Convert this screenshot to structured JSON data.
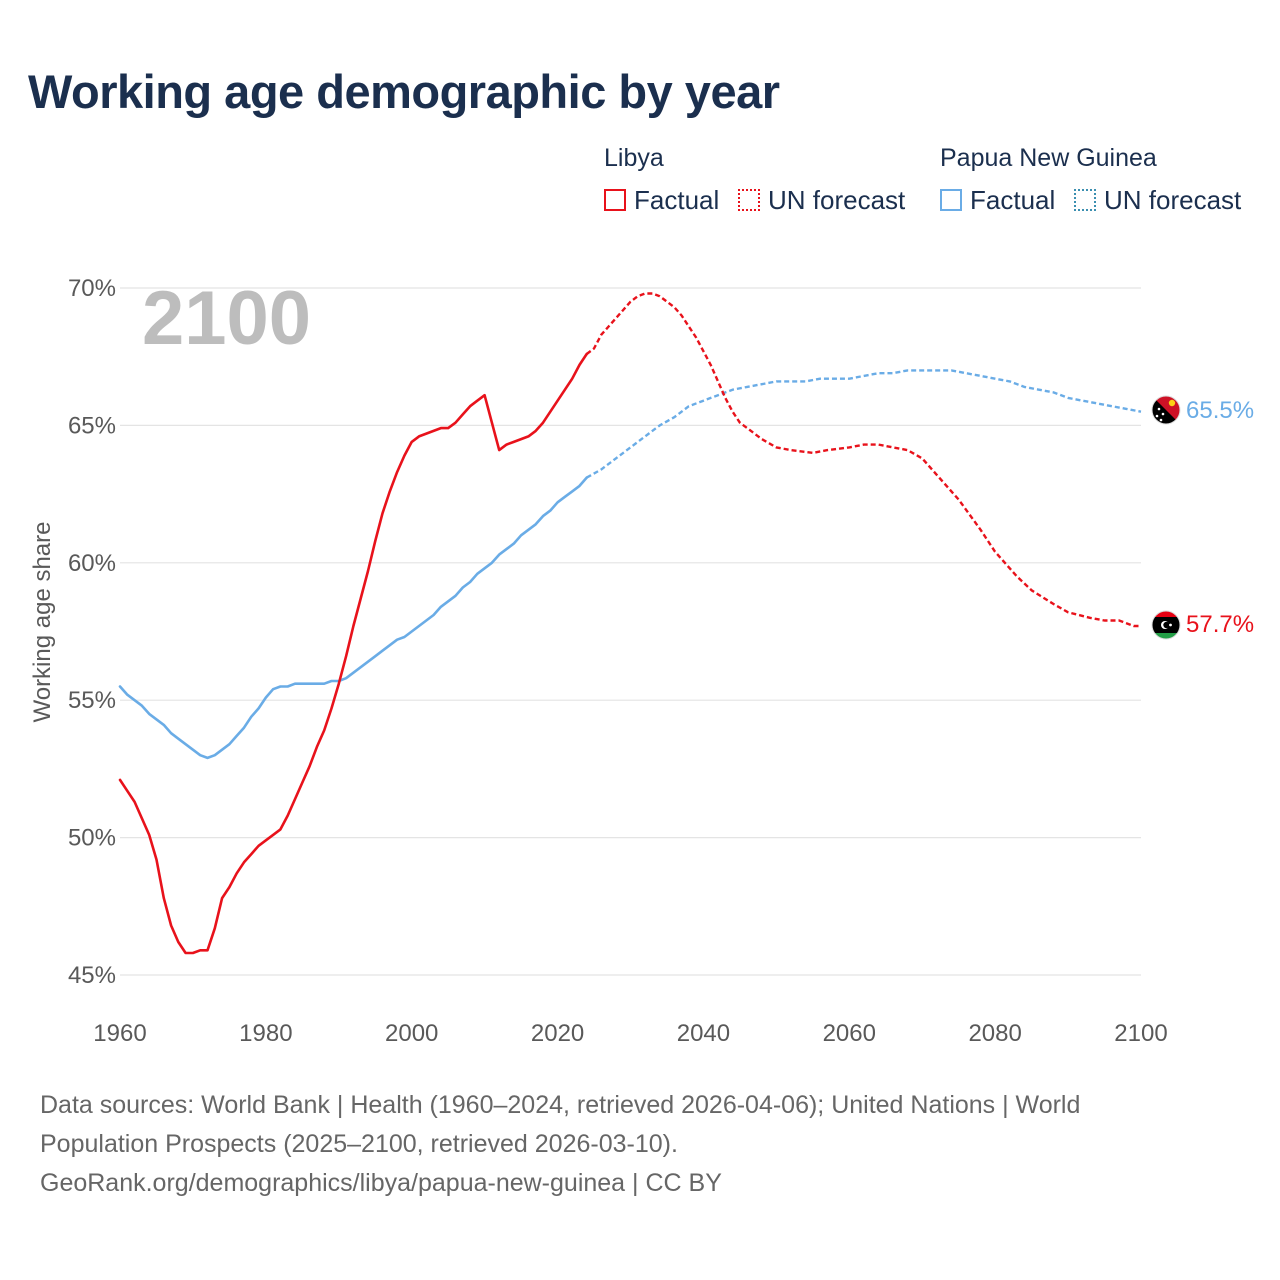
{
  "title": "Working age demographic by year",
  "legend": {
    "groups": [
      {
        "country": "Libya",
        "factual_label": "Factual",
        "forecast_label": "UN forecast",
        "color": "#e8121b"
      },
      {
        "country": "Papua New Guinea",
        "factual_label": "Factual",
        "forecast_label": "UN forecast",
        "color": "#6aace6"
      }
    ]
  },
  "footer": {
    "sources": "Data sources: World Bank | Health (1960–2024, retrieved 2026-04-06); United Nations | World Population Prospects (2025–2100, retrieved 2026-03-10).",
    "credit": "GeoRank.org/demographics/libya/papua-new-guinea | CC BY"
  },
  "chart_data": {
    "type": "line",
    "title": "Working age demographic by year",
    "year_display": "2100",
    "xlabel": "",
    "ylabel": "Working age share",
    "xlim": [
      1960,
      2100
    ],
    "ylim": [
      45,
      70
    ],
    "x_ticks": [
      "1960",
      "1980",
      "2000",
      "2020",
      "2040",
      "2060",
      "2080",
      "2100"
    ],
    "x_tick_values": [
      1960,
      1980,
      2000,
      2020,
      2040,
      2060,
      2080,
      2100
    ],
    "y_ticks": [
      "45%",
      "50%",
      "55%",
      "60%",
      "65%",
      "70%"
    ],
    "y_tick_values": [
      45,
      50,
      55,
      60,
      65,
      70
    ],
    "grid": true,
    "forecast_start_year": 2024,
    "series": [
      {
        "name": "Libya",
        "color": "#e8121b",
        "end_label": "57.7%",
        "flag": "libya-flag",
        "points": [
          [
            1960,
            52.1
          ],
          [
            1962,
            51.3
          ],
          [
            1964,
            50.1
          ],
          [
            1965,
            49.2
          ],
          [
            1966,
            47.8
          ],
          [
            1967,
            46.8
          ],
          [
            1968,
            46.2
          ],
          [
            1969,
            45.8
          ],
          [
            1970,
            45.8
          ],
          [
            1971,
            45.9
          ],
          [
            1972,
            45.9
          ],
          [
            1973,
            46.7
          ],
          [
            1974,
            47.8
          ],
          [
            1975,
            48.2
          ],
          [
            1976,
            48.7
          ],
          [
            1977,
            49.1
          ],
          [
            1978,
            49.4
          ],
          [
            1979,
            49.7
          ],
          [
            1980,
            49.9
          ],
          [
            1981,
            50.1
          ],
          [
            1982,
            50.3
          ],
          [
            1983,
            50.8
          ],
          [
            1984,
            51.4
          ],
          [
            1985,
            52.0
          ],
          [
            1986,
            52.6
          ],
          [
            1987,
            53.3
          ],
          [
            1988,
            53.9
          ],
          [
            1989,
            54.7
          ],
          [
            1990,
            55.6
          ],
          [
            1991,
            56.6
          ],
          [
            1992,
            57.7
          ],
          [
            1993,
            58.7
          ],
          [
            1994,
            59.7
          ],
          [
            1995,
            60.8
          ],
          [
            1996,
            61.8
          ],
          [
            1997,
            62.6
          ],
          [
            1998,
            63.3
          ],
          [
            1999,
            63.9
          ],
          [
            2000,
            64.4
          ],
          [
            2001,
            64.6
          ],
          [
            2002,
            64.7
          ],
          [
            2003,
            64.8
          ],
          [
            2004,
            64.9
          ],
          [
            2005,
            64.9
          ],
          [
            2006,
            65.1
          ],
          [
            2007,
            65.4
          ],
          [
            2008,
            65.7
          ],
          [
            2009,
            65.9
          ],
          [
            2010,
            66.1
          ],
          [
            2011,
            65.1
          ],
          [
            2012,
            64.1
          ],
          [
            2013,
            64.3
          ],
          [
            2014,
            64.4
          ],
          [
            2015,
            64.5
          ],
          [
            2016,
            64.6
          ],
          [
            2017,
            64.8
          ],
          [
            2018,
            65.1
          ],
          [
            2019,
            65.5
          ],
          [
            2020,
            65.9
          ],
          [
            2021,
            66.3
          ],
          [
            2022,
            66.7
          ],
          [
            2023,
            67.2
          ],
          [
            2024,
            67.6
          ],
          [
            2025,
            67.8
          ],
          [
            2026,
            68.3
          ],
          [
            2027,
            68.6
          ],
          [
            2028,
            68.9
          ],
          [
            2029,
            69.2
          ],
          [
            2030,
            69.5
          ],
          [
            2031,
            69.7
          ],
          [
            2032,
            69.8
          ],
          [
            2033,
            69.8
          ],
          [
            2034,
            69.7
          ],
          [
            2035,
            69.5
          ],
          [
            2036,
            69.3
          ],
          [
            2037,
            69.0
          ],
          [
            2038,
            68.6
          ],
          [
            2039,
            68.2
          ],
          [
            2040,
            67.7
          ],
          [
            2041,
            67.2
          ],
          [
            2042,
            66.6
          ],
          [
            2043,
            66.0
          ],
          [
            2044,
            65.5
          ],
          [
            2045,
            65.1
          ],
          [
            2046,
            64.9
          ],
          [
            2047,
            64.7
          ],
          [
            2048,
            64.5
          ],
          [
            2050,
            64.2
          ],
          [
            2052,
            64.1
          ],
          [
            2055,
            64.0
          ],
          [
            2057,
            64.1
          ],
          [
            2060,
            64.2
          ],
          [
            2062,
            64.3
          ],
          [
            2064,
            64.3
          ],
          [
            2066,
            64.2
          ],
          [
            2068,
            64.1
          ],
          [
            2070,
            63.8
          ],
          [
            2072,
            63.2
          ],
          [
            2075,
            62.3
          ],
          [
            2078,
            61.2
          ],
          [
            2080,
            60.4
          ],
          [
            2083,
            59.5
          ],
          [
            2085,
            59.0
          ],
          [
            2088,
            58.5
          ],
          [
            2090,
            58.2
          ],
          [
            2093,
            58.0
          ],
          [
            2095,
            57.9
          ],
          [
            2097,
            57.9
          ],
          [
            2099,
            57.7
          ],
          [
            2100,
            57.7
          ]
        ]
      },
      {
        "name": "Papua New Guinea",
        "color": "#6aace6",
        "end_label": "65.5%",
        "flag": "papua-new-guinea-flag",
        "points": [
          [
            1960,
            55.5
          ],
          [
            1961,
            55.2
          ],
          [
            1962,
            55.0
          ],
          [
            1963,
            54.8
          ],
          [
            1964,
            54.5
          ],
          [
            1965,
            54.3
          ],
          [
            1966,
            54.1
          ],
          [
            1967,
            53.8
          ],
          [
            1968,
            53.6
          ],
          [
            1969,
            53.4
          ],
          [
            1970,
            53.2
          ],
          [
            1971,
            53.0
          ],
          [
            1972,
            52.9
          ],
          [
            1973,
            53.0
          ],
          [
            1974,
            53.2
          ],
          [
            1975,
            53.4
          ],
          [
            1976,
            53.7
          ],
          [
            1977,
            54.0
          ],
          [
            1978,
            54.4
          ],
          [
            1979,
            54.7
          ],
          [
            1980,
            55.1
          ],
          [
            1981,
            55.4
          ],
          [
            1982,
            55.5
          ],
          [
            1983,
            55.5
          ],
          [
            1984,
            55.6
          ],
          [
            1985,
            55.6
          ],
          [
            1986,
            55.6
          ],
          [
            1987,
            55.6
          ],
          [
            1988,
            55.6
          ],
          [
            1989,
            55.7
          ],
          [
            1990,
            55.7
          ],
          [
            1991,
            55.8
          ],
          [
            1992,
            56.0
          ],
          [
            1993,
            56.2
          ],
          [
            1994,
            56.4
          ],
          [
            1995,
            56.6
          ],
          [
            1996,
            56.8
          ],
          [
            1997,
            57.0
          ],
          [
            1998,
            57.2
          ],
          [
            1999,
            57.3
          ],
          [
            2000,
            57.5
          ],
          [
            2001,
            57.7
          ],
          [
            2002,
            57.9
          ],
          [
            2003,
            58.1
          ],
          [
            2004,
            58.4
          ],
          [
            2005,
            58.6
          ],
          [
            2006,
            58.8
          ],
          [
            2007,
            59.1
          ],
          [
            2008,
            59.3
          ],
          [
            2009,
            59.6
          ],
          [
            2010,
            59.8
          ],
          [
            2011,
            60.0
          ],
          [
            2012,
            60.3
          ],
          [
            2013,
            60.5
          ],
          [
            2014,
            60.7
          ],
          [
            2015,
            61.0
          ],
          [
            2016,
            61.2
          ],
          [
            2017,
            61.4
          ],
          [
            2018,
            61.7
          ],
          [
            2019,
            61.9
          ],
          [
            2020,
            62.2
          ],
          [
            2021,
            62.4
          ],
          [
            2022,
            62.6
          ],
          [
            2023,
            62.8
          ],
          [
            2024,
            63.1
          ],
          [
            2026,
            63.4
          ],
          [
            2028,
            63.8
          ],
          [
            2030,
            64.2
          ],
          [
            2032,
            64.6
          ],
          [
            2034,
            65.0
          ],
          [
            2036,
            65.3
          ],
          [
            2038,
            65.7
          ],
          [
            2040,
            65.9
          ],
          [
            2042,
            66.1
          ],
          [
            2044,
            66.3
          ],
          [
            2046,
            66.4
          ],
          [
            2048,
            66.5
          ],
          [
            2050,
            66.6
          ],
          [
            2052,
            66.6
          ],
          [
            2054,
            66.6
          ],
          [
            2056,
            66.7
          ],
          [
            2058,
            66.7
          ],
          [
            2060,
            66.7
          ],
          [
            2062,
            66.8
          ],
          [
            2064,
            66.9
          ],
          [
            2066,
            66.9
          ],
          [
            2068,
            67.0
          ],
          [
            2070,
            67.0
          ],
          [
            2072,
            67.0
          ],
          [
            2074,
            67.0
          ],
          [
            2076,
            66.9
          ],
          [
            2078,
            66.8
          ],
          [
            2080,
            66.7
          ],
          [
            2082,
            66.6
          ],
          [
            2084,
            66.4
          ],
          [
            2086,
            66.3
          ],
          [
            2088,
            66.2
          ],
          [
            2090,
            66.0
          ],
          [
            2092,
            65.9
          ],
          [
            2094,
            65.8
          ],
          [
            2096,
            65.7
          ],
          [
            2098,
            65.6
          ],
          [
            2100,
            65.5
          ]
        ]
      }
    ]
  }
}
